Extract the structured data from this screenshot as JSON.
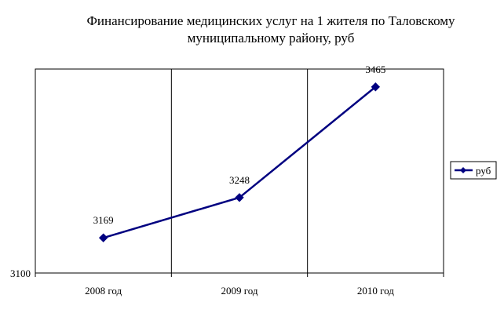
{
  "chart_data": {
    "type": "line",
    "title_lines": [
      "Финансирование медицинских услуг на 1 жителя по Таловскому",
      "муниципальному району, руб"
    ],
    "categories": [
      "2008 год",
      "2009 год",
      "2010 год"
    ],
    "series": [
      {
        "name": "руб",
        "values": [
          3169,
          3248,
          3465
        ],
        "color": "#000080",
        "marker": "diamond"
      }
    ],
    "data_labels": [
      "3169",
      "3248",
      "3465"
    ],
    "y_tick_labels": [
      "3100"
    ],
    "ylim": [
      3100,
      3500
    ],
    "xlabel": "",
    "ylabel": "",
    "grid": "vertical",
    "legend_position": "right",
    "plot_border": true
  }
}
